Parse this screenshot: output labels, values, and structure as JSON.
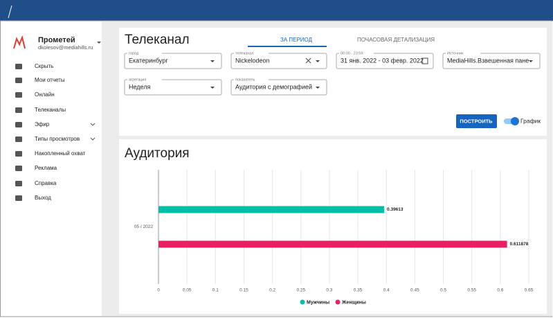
{
  "sidebar": {
    "user_name": "Прометей",
    "user_email": "dkolesov@mediahills.ru",
    "menu": [
      "Скрыть",
      "Мои отчеты",
      "Онлайн",
      "Телеканалы",
      "Эфир",
      "Типы просмотров",
      "Накопленный охват",
      "Реклама",
      "Справка",
      "Выход"
    ]
  },
  "header": {
    "title": "Телеканал",
    "tabs": [
      "ЗА ПЕРИОД",
      "ПОЧАСОВАЯ ДЕТАЛИЗАЦИЯ"
    ]
  },
  "filters": [
    {
      "label": "город",
      "value": "Екатеринбург"
    },
    {
      "label": "телеканал",
      "value": "Nickelodeon"
    },
    {
      "label": "00:00 - 23:59",
      "value": "31 янв. 2022 - 03 февр. 2022"
    },
    {
      "label": "Источник",
      "value": "MediaHills.Взвешенная пане"
    },
    {
      "label": "агрегация",
      "value": "Неделя"
    },
    {
      "label": "показатель",
      "value": "Аудитория с демографией"
    }
  ],
  "build_button": "ПОСТРОИТЬ",
  "toggle_label": "График",
  "chart_data": {
    "type": "bar",
    "orientation": "horizontal",
    "title": "Аудитория",
    "categories": [
      "05 / 2022"
    ],
    "series": [
      {
        "name": "Мужчины",
        "color": "#00bfa5",
        "values": [
          0.39613
        ]
      },
      {
        "name": "Женщины",
        "color": "#e91e63",
        "values": [
          0.611878
        ]
      }
    ],
    "xlim": [
      0,
      0.65
    ],
    "xticks": [
      0,
      0.05,
      0.1,
      0.15,
      0.2,
      0.25,
      0.3,
      0.35,
      0.4,
      0.45,
      0.5,
      0.55,
      0.6,
      0.65
    ],
    "grid": true,
    "legend": "bottom"
  }
}
